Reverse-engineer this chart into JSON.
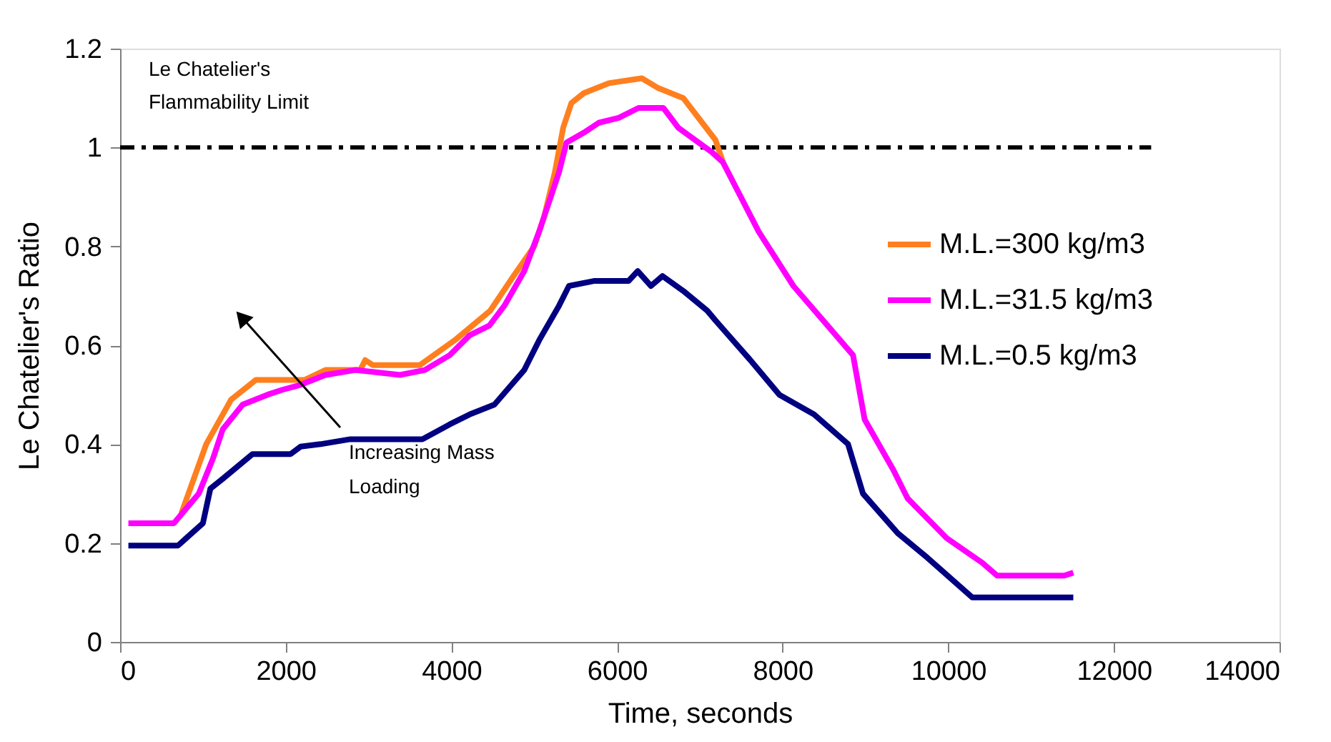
{
  "chart_data": {
    "type": "line",
    "xlabel": "Time, seconds",
    "ylabel": "Le Chatelier's Ratio",
    "xlim": [
      0,
      14000
    ],
    "xticks": [
      0,
      2000,
      4000,
      6000,
      8000,
      10000,
      12000,
      14000
    ],
    "ylim": [
      0,
      1.2
    ],
    "yticks": [
      0,
      0.2,
      0.4,
      0.6,
      0.8,
      1,
      1.2
    ],
    "grid": false,
    "legend": "right",
    "marker": "none",
    "annotations": [
      "Le Chatelier's Flammability Limit",
      "Increasing Mass Loading"
    ],
    "series": [
      {
        "type": "line",
        "color": "#000000",
        "line_style": "dashed",
        "x": [
          0,
          12450
        ],
        "values": [
          1,
          1
        ]
      },
      {
        "name": "M.L.=300 kg/m3",
        "color": "#ff7f1f",
        "x": [
          740,
          1040,
          1340,
          1640,
          2230,
          2480,
          2900,
          2960,
          3050,
          3620,
          4040,
          4470,
          4750,
          5000,
          5120,
          5250,
          5350,
          5450,
          5600,
          5900,
          6300,
          6500,
          6800,
          7190,
          7280
        ],
        "values": [
          0.26,
          0.4,
          0.49,
          0.53,
          0.53,
          0.55,
          0.55,
          0.57,
          0.56,
          0.56,
          0.61,
          0.67,
          0.74,
          0.8,
          0.86,
          0.95,
          1.04,
          1.09,
          1.11,
          1.13,
          1.14,
          1.12,
          1.1,
          1.015,
          0.97
        ]
      },
      {
        "name": "M.L.=31.5 kg/m3",
        "color": "#ff00ff",
        "x": [
          100,
          650,
          950,
          1120,
          1240,
          1480,
          1780,
          1960,
          2180,
          2480,
          2840,
          3380,
          3680,
          3980,
          4220,
          4460,
          4640,
          4880,
          5060,
          5300,
          5390,
          5600,
          5780,
          6020,
          6260,
          6560,
          6740,
          7150,
          7280,
          7710,
          8130,
          8490,
          8850,
          8990,
          9330,
          9510,
          9980,
          10410,
          10590,
          11400,
          11510
        ],
        "values": [
          0.24,
          0.24,
          0.3,
          0.37,
          0.43,
          0.48,
          0.5,
          0.51,
          0.52,
          0.54,
          0.55,
          0.54,
          0.55,
          0.58,
          0.62,
          0.64,
          0.68,
          0.75,
          0.83,
          0.95,
          1.01,
          1.03,
          1.05,
          1.06,
          1.08,
          1.08,
          1.04,
          0.99,
          0.97,
          0.83,
          0.72,
          0.65,
          0.58,
          0.45,
          0.35,
          0.29,
          0.21,
          0.16,
          0.134,
          0.134,
          0.14
        ]
      },
      {
        "name": "M.L.=0.5 kg/m3",
        "color": "#000080",
        "x": [
          100,
          700,
          1000,
          1090,
          1240,
          1600,
          2060,
          2180,
          2420,
          2780,
          3650,
          3980,
          4220,
          4520,
          4880,
          5060,
          5300,
          5420,
          5720,
          6140,
          6250,
          6410,
          6550,
          6800,
          7090,
          7190,
          7610,
          7960,
          8380,
          8790,
          8970,
          9390,
          9750,
          10290,
          11510
        ],
        "values": [
          0.195,
          0.195,
          0.24,
          0.31,
          0.33,
          0.38,
          0.38,
          0.395,
          0.4,
          0.41,
          0.41,
          0.44,
          0.46,
          0.48,
          0.55,
          0.61,
          0.68,
          0.72,
          0.73,
          0.73,
          0.75,
          0.72,
          0.74,
          0.71,
          0.67,
          0.65,
          0.57,
          0.5,
          0.46,
          0.4,
          0.3,
          0.22,
          0.17,
          0.09,
          0.09
        ]
      }
    ]
  }
}
